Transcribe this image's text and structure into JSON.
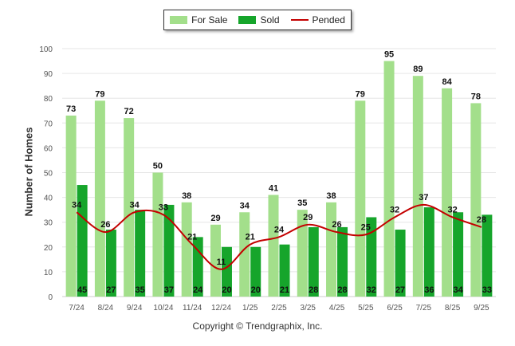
{
  "legend": {
    "for_sale": "For Sale",
    "sold": "Sold",
    "pended": "Pended"
  },
  "colors": {
    "for_sale": "#a3df8b",
    "sold": "#16a52b",
    "pended": "#c40000",
    "grid": "#e6e6e6",
    "axis_text": "#555555"
  },
  "footer": {
    "copyright": "Copyright © Trendgraphix, Inc."
  },
  "chart_data": {
    "type": "bar",
    "ylabel": "Number of Homes",
    "xlabel": "",
    "ylim": [
      0,
      100
    ],
    "yticks": [
      0,
      10,
      20,
      30,
      40,
      50,
      60,
      70,
      80,
      90,
      100
    ],
    "grid": true,
    "legend_position": "top-center",
    "categories": [
      "7/24",
      "8/24",
      "9/24",
      "10/24",
      "11/24",
      "12/24",
      "1/25",
      "2/25",
      "3/25",
      "4/25",
      "5/25",
      "6/25",
      "7/25",
      "8/25",
      "9/25"
    ],
    "series": [
      {
        "name": "For Sale",
        "type": "bar",
        "values": [
          73,
          79,
          72,
          50,
          38,
          29,
          34,
          41,
          35,
          38,
          79,
          95,
          89,
          84,
          78
        ]
      },
      {
        "name": "Sold",
        "type": "bar",
        "values": [
          45,
          27,
          35,
          37,
          24,
          20,
          20,
          21,
          28,
          28,
          32,
          27,
          36,
          34,
          33
        ]
      },
      {
        "name": "Pended",
        "type": "line",
        "values": [
          34,
          26,
          34,
          33,
          21,
          11,
          21,
          24,
          29,
          26,
          25,
          32,
          37,
          32,
          28
        ]
      }
    ]
  }
}
